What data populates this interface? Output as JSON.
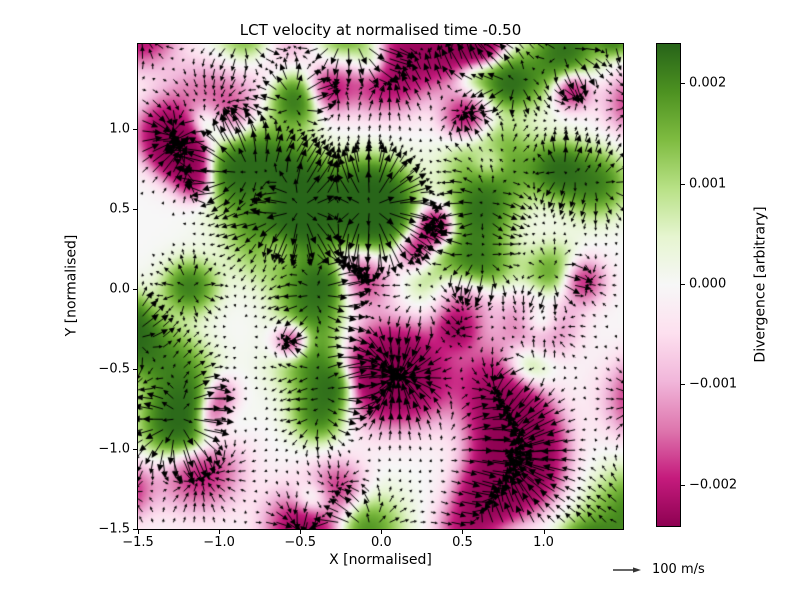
{
  "figure": {
    "background": "#ffffff",
    "text_color": "#000000"
  },
  "chart_data": {
    "type": "quiver_vector_field_over_divergence_heatmap",
    "title": "LCT velocity at normalised time -0.50",
    "xlabel": "X [normalised]",
    "ylabel": "Y [normalised]",
    "xlim": [
      -1.5,
      1.49
    ],
    "ylim": [
      -1.5,
      1.53
    ],
    "grid": false,
    "x_ticks": {
      "values": [
        -1.5,
        -1.0,
        -0.5,
        0.0,
        0.5,
        1.0
      ],
      "labels": [
        "−1.5",
        "−1.0",
        "−0.5",
        "0.0",
        "0.5",
        "1.0"
      ]
    },
    "y_ticks": {
      "values": [
        1.0,
        0.5,
        0.0,
        -0.5,
        -1.0,
        -1.5
      ],
      "labels": [
        "1.0",
        "0.5",
        "0.0",
        "−0.5",
        "−1.0",
        "−1.5"
      ]
    },
    "colorbar": {
      "label": "Divergence [arbitrary]",
      "vmin": -0.0024,
      "vmax": 0.0024,
      "tick_values": [
        0.002,
        0.001,
        0.0,
        -0.001,
        -0.002
      ],
      "tick_labels": [
        "0.002",
        "0.001",
        "0.000",
        "−0.001",
        "−0.002"
      ],
      "colormap": "PiYG",
      "colormap_stops": [
        "#8e0152",
        "#c51b7d",
        "#de77ae",
        "#f1b6da",
        "#fde0ef",
        "#f7f7f7",
        "#e6f5d0",
        "#b8e186",
        "#7fbc41",
        "#4d9221",
        "#276419"
      ],
      "position": "right"
    },
    "quiver_key": {
      "label": "100 m/s",
      "arrow_color": "#333333"
    },
    "field": {
      "arrow_color": "#000000",
      "description": "Dense black velocity arrows on a regular grid; arrows diverge outward from green regions (positive divergence, sources) and converge into magenta regions (negative divergence, sinks); background near-white where divergence is zero."
    }
  }
}
